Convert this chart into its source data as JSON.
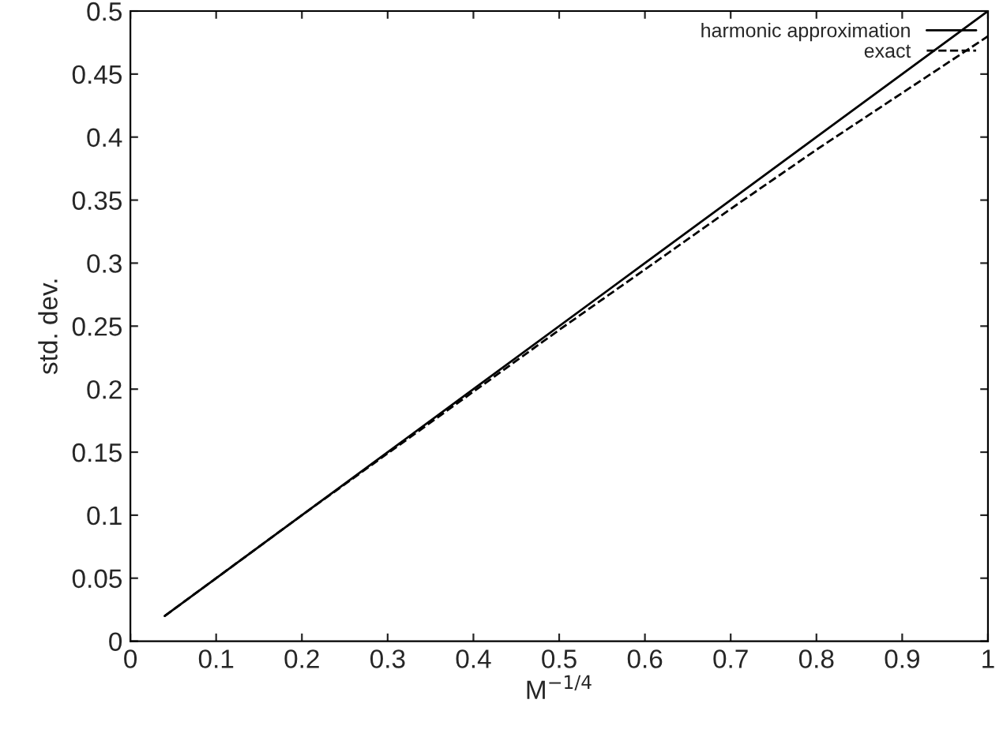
{
  "chart_data": {
    "type": "line",
    "xlabel": "M$^{−1/4}$",
    "ylabel": "std. dev.",
    "xlim": [
      0,
      1
    ],
    "ylim": [
      0,
      0.5
    ],
    "xticks": [
      0,
      0.1,
      0.2,
      0.3,
      0.4,
      0.5,
      0.6,
      0.7,
      0.8,
      0.9,
      1
    ],
    "yticks": [
      0,
      0.05,
      0.1,
      0.15,
      0.2,
      0.25,
      0.3,
      0.35,
      0.4,
      0.45,
      0.5
    ],
    "legend": "top right",
    "grid": false,
    "marker": "none",
    "series": [
      {
        "name": "harmonic approximation",
        "color": "#000000",
        "line_style": "solid",
        "x": [
          0.04,
          0.2,
          0.4,
          0.6,
          0.8,
          1
        ],
        "values": [
          0.02,
          0.1,
          0.2,
          0.3,
          0.4,
          0.5
        ]
      },
      {
        "name": "exact",
        "color": "#000000",
        "line_style": "dashed",
        "x": [
          0.04,
          0.2,
          0.3,
          0.4,
          0.5,
          0.6,
          0.7,
          0.8,
          0.9,
          1
        ],
        "values": [
          0.02,
          0.1,
          0.149,
          0.198,
          0.247,
          0.295,
          0.343,
          0.39,
          0.435,
          0.48
        ]
      }
    ]
  }
}
